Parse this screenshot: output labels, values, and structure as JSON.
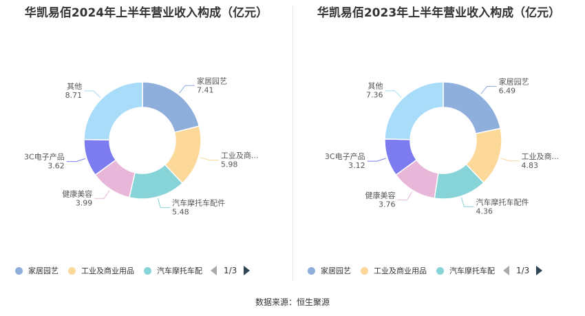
{
  "colors": [
    "#8eaedb",
    "#fcd899",
    "#86d4d8",
    "#e8b6d8",
    "#7c7cf0",
    "#a8dcf8"
  ],
  "chart_data": [
    {
      "type": "pie",
      "title": "华凯易佰2024年上半年营业收入构成（亿元）",
      "categories": [
        "家居园艺",
        "工业及商业用品",
        "汽车摩托车配件",
        "健康美容",
        "3C电子产品",
        "其他"
      ],
      "slice_labels": [
        "家居园艺",
        "工业及商...",
        "汽车摩托车配件",
        "健康美容",
        "3C电子产品",
        "其他"
      ],
      "values": [
        7.41,
        5.98,
        5.48,
        3.99,
        3.62,
        8.71
      ],
      "value_labels": [
        "7.41",
        "5.98",
        "5.48",
        "3.99",
        "3.62",
        "8.71"
      ]
    },
    {
      "type": "pie",
      "title": "华凯易佰2023年上半年营业收入构成（亿元）",
      "categories": [
        "家居园艺",
        "工业及商业用品",
        "汽车摩托车配件",
        "健康美容",
        "3C电子产品",
        "其他"
      ],
      "slice_labels": [
        "家居园艺",
        "工业及商...",
        "汽车摩托车配件",
        "健康美容",
        "3C电子产品",
        "其他"
      ],
      "values": [
        6.49,
        4.83,
        4.36,
        3.76,
        3.12,
        7.36
      ],
      "value_labels": [
        "6.49",
        "4.83",
        "4.36",
        "3.76",
        "3.12",
        "7.36"
      ]
    }
  ],
  "legend": {
    "items": [
      "家居园艺",
      "工业及商业用品",
      "汽车摩托车配"
    ],
    "page": "1/3"
  },
  "source": "数据来源：恒生聚源"
}
